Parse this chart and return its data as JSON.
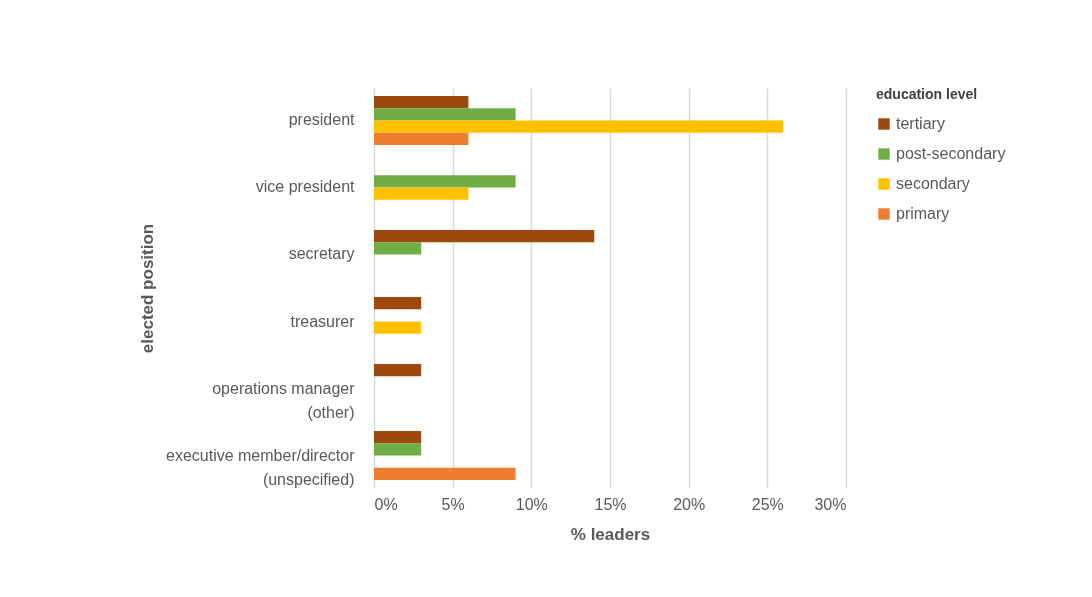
{
  "chart_data": {
    "type": "bar",
    "orientation": "horizontal",
    "xlabel": "% leaders",
    "ylabel": "elected position",
    "legend_title": "education level",
    "legend": "right",
    "grid": "x",
    "categories": [
      "president",
      "vice president",
      "secretary",
      "treasurer",
      "operations manager\n(other)",
      "executive member/director\n(unspecified)"
    ],
    "series": [
      {
        "name": "tertiary",
        "color": "#9e480e",
        "values": [
          6,
          null,
          14,
          3,
          3,
          3
        ]
      },
      {
        "name": "post-secondary",
        "color": "#70ad47",
        "values": [
          9,
          9,
          3,
          null,
          null,
          3
        ]
      },
      {
        "name": "secondary",
        "color": "#ffc000",
        "values": [
          26,
          6,
          null,
          3,
          null,
          null
        ]
      },
      {
        "name": "primary",
        "color": "#ed7d31",
        "values": [
          6,
          null,
          null,
          null,
          null,
          9
        ]
      }
    ],
    "xlim": [
      0,
      30
    ],
    "xticks": [
      {
        "value": 0,
        "label": "0%"
      },
      {
        "value": 5,
        "label": "5%"
      },
      {
        "value": 10,
        "label": "10%"
      },
      {
        "value": 15,
        "label": "15%"
      },
      {
        "value": 20,
        "label": "20%"
      },
      {
        "value": 25,
        "label": "25%"
      },
      {
        "value": 30,
        "label": "30%"
      }
    ]
  }
}
